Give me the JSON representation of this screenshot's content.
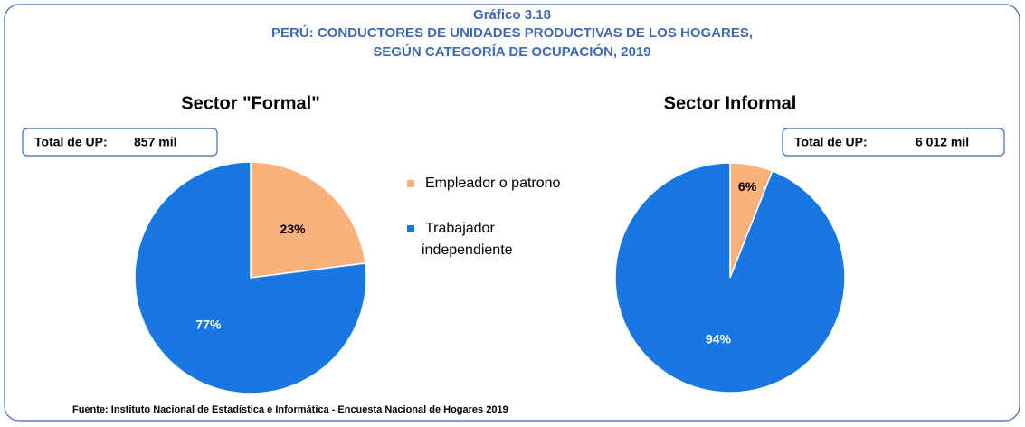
{
  "header": {
    "title": "Gráfico 3.18",
    "title_line1": "PERÚ: CONDUCTORES DE UNIDADES PRODUCTIVAS DE LOS HOGARES,",
    "title_line2": "SEGÚN CATEGORÍA DE OCUPACIÓN, 2019"
  },
  "chart_data": [
    {
      "type": "pie",
      "title": "Sector \"Formal\"",
      "total_label": "Total de UP:",
      "total": "857 mil",
      "categories": [
        "Empleador o patrono",
        "Trabajador independiente"
      ],
      "values": [
        23,
        77
      ],
      "value_labels": [
        "23%",
        "77%"
      ],
      "colors": [
        "#f9b27c",
        "#1877e0"
      ]
    },
    {
      "type": "pie",
      "title": "Sector Informal",
      "total_label": "Total de UP:",
      "total": "6 012  mil",
      "categories": [
        "Empleador o patrono",
        "Trabajador independiente"
      ],
      "values": [
        6,
        94
      ],
      "value_labels": [
        "6%",
        "94%"
      ],
      "colors": [
        "#f9b27c",
        "#1877e0"
      ]
    }
  ],
  "footer": {
    "source": "Fuente: Instituto Nacional de Estadística e Informática - Encuesta Nacional de Hogares 2019"
  }
}
